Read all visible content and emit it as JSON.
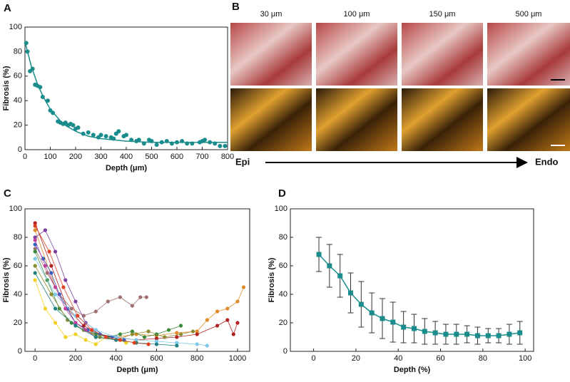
{
  "chart_data": [
    {
      "type": "scatter",
      "panel_label": "A",
      "xlabel": "Depth (μm)",
      "ylabel": "Fibrosis (%)",
      "xlim": [
        0,
        800
      ],
      "xticks": [
        0,
        100,
        200,
        300,
        400,
        500,
        600,
        700,
        800
      ],
      "ylim": [
        0,
        100
      ],
      "yticks": [
        0,
        20,
        40,
        60,
        80,
        100
      ],
      "series": [
        {
          "color": "#1a8c8c",
          "style": "markers",
          "x": [
            5,
            10,
            20,
            30,
            40,
            50,
            60,
            70,
            90,
            100,
            110,
            130,
            140,
            150,
            160,
            170,
            180,
            190,
            200,
            210,
            230,
            250,
            270,
            290,
            300,
            320,
            340,
            350,
            360,
            370,
            390,
            400,
            420,
            440,
            450,
            470,
            490,
            500,
            520,
            540,
            560,
            580,
            600,
            620,
            640,
            660,
            690,
            700,
            710,
            730,
            750,
            770,
            790
          ],
          "values": [
            87,
            80,
            64,
            66,
            53,
            52,
            51,
            43,
            40,
            32,
            30,
            23,
            22,
            21,
            22,
            20,
            21,
            20,
            17,
            18,
            13,
            14,
            12,
            10,
            12,
            11,
            10,
            9,
            13,
            15,
            11,
            12,
            8,
            7,
            8,
            5,
            8,
            7,
            4,
            6,
            7,
            5,
            6,
            7,
            5,
            5,
            6,
            7,
            8,
            6,
            5,
            3,
            3
          ]
        },
        {
          "color": "#1a8c8c",
          "style": "line",
          "x": [
            0,
            25,
            50,
            75,
            100,
            150,
            200,
            250,
            300,
            400,
            500,
            600,
            700,
            800
          ],
          "values": [
            88,
            68,
            53,
            42,
            33,
            21,
            15,
            11,
            9,
            7,
            6,
            6,
            6,
            6
          ]
        }
      ]
    },
    {
      "type": "line",
      "panel_label": "C",
      "xlabel": "Depth (μm)",
      "ylabel": "Fibrosis (%)",
      "xlim": [
        -50,
        1060
      ],
      "xticks": [
        0,
        200,
        400,
        600,
        800,
        1000
      ],
      "ylim": [
        0,
        100
      ],
      "yticks": [
        0,
        20,
        40,
        60,
        80,
        100
      ],
      "series": [
        {
          "color": "#a07070",
          "style": "markers+line",
          "x": [
            0,
            60,
            120,
            180,
            240,
            300,
            360,
            420,
            480,
            520,
            550
          ],
          "values": [
            72,
            55,
            40,
            30,
            25,
            28,
            35,
            38,
            32,
            38,
            38
          ]
        },
        {
          "color": "#e08a2a",
          "style": "markers+line",
          "x": [
            0,
            100,
            200,
            300,
            400,
            500,
            600,
            700,
            800,
            850,
            900,
            950,
            1000,
            1030
          ],
          "values": [
            85,
            45,
            20,
            12,
            10,
            12,
            11,
            13,
            14,
            22,
            28,
            30,
            35,
            45
          ]
        },
        {
          "color": "#b22222",
          "style": "markers+line",
          "x": [
            0,
            80,
            160,
            240,
            320,
            400,
            500,
            600,
            700,
            800,
            900,
            950,
            980,
            1000
          ],
          "values": [
            90,
            60,
            30,
            18,
            12,
            10,
            8,
            9,
            10,
            12,
            18,
            22,
            12,
            20
          ]
        },
        {
          "color": "#7b3fa0",
          "style": "markers+line",
          "x": [
            0,
            50,
            100,
            150,
            200,
            250,
            300,
            350
          ],
          "values": [
            80,
            85,
            70,
            50,
            35,
            20,
            15,
            10
          ]
        },
        {
          "color": "#f0d020",
          "style": "markers+line",
          "x": [
            0,
            50,
            100,
            150,
            200,
            250,
            300,
            350,
            400,
            450
          ],
          "values": [
            50,
            30,
            20,
            10,
            12,
            8,
            5,
            10,
            8,
            6
          ]
        },
        {
          "color": "#3a8a3a",
          "style": "markers+line",
          "x": [
            0,
            60,
            120,
            180,
            240,
            300,
            360,
            420,
            480,
            540,
            600,
            660,
            720
          ],
          "values": [
            70,
            50,
            30,
            20,
            15,
            12,
            10,
            12,
            14,
            10,
            12,
            15,
            18
          ]
        },
        {
          "color": "#3060c0",
          "style": "markers+line",
          "x": [
            0,
            40,
            80,
            120,
            160,
            200,
            260,
            320,
            380,
            440
          ],
          "values": [
            75,
            65,
            55,
            40,
            30,
            20,
            15,
            12,
            10,
            8
          ]
        },
        {
          "color": "#7ec8e8",
          "style": "markers+line",
          "x": [
            0,
            100,
            200,
            300,
            400,
            500,
            600,
            700,
            800,
            850
          ],
          "values": [
            65,
            40,
            25,
            15,
            10,
            8,
            7,
            6,
            5,
            4
          ]
        },
        {
          "color": "#8a8a30",
          "style": "markers+line",
          "x": [
            0,
            80,
            160,
            240,
            320,
            400,
            480,
            560,
            640,
            720,
            780
          ],
          "values": [
            60,
            40,
            22,
            15,
            10,
            8,
            12,
            14,
            10,
            12,
            14
          ]
        },
        {
          "color": "#c040a0",
          "style": "markers+line",
          "x": [
            0,
            50,
            100,
            150,
            200,
            250,
            300
          ],
          "values": [
            78,
            60,
            45,
            30,
            20,
            15,
            10
          ]
        },
        {
          "color": "#208080",
          "style": "markers+line",
          "x": [
            0,
            100,
            200,
            300,
            400,
            500,
            600,
            700
          ],
          "values": [
            55,
            30,
            18,
            10,
            8,
            6,
            5,
            4
          ]
        },
        {
          "color": "#e04020",
          "style": "markers+line",
          "x": [
            0,
            70,
            140,
            210,
            280,
            350,
            420,
            490,
            560
          ],
          "values": [
            88,
            70,
            45,
            25,
            15,
            10,
            8,
            6,
            5
          ]
        }
      ]
    },
    {
      "type": "line",
      "panel_label": "D",
      "xlabel": "Depth (%)",
      "ylabel": "Fibrosis (%)",
      "xlim": [
        -11,
        104
      ],
      "xticks": [
        0,
        20,
        40,
        60,
        80,
        100
      ],
      "ylim": [
        0,
        100
      ],
      "yticks": [
        0,
        20,
        40,
        60,
        80,
        100
      ],
      "series": [
        {
          "color": "#1a8c8c",
          "style": "markers+line",
          "marker": "square",
          "x": [
            2.5,
            7.5,
            12.5,
            17.5,
            22.5,
            27.5,
            32.5,
            37.5,
            42.5,
            47.5,
            52.5,
            57.5,
            62.5,
            67.5,
            72.5,
            77.5,
            82.5,
            87.5,
            92.5,
            97.5
          ],
          "values": [
            68,
            60,
            53,
            41,
            33,
            27,
            23,
            20.5,
            17,
            16,
            14,
            13,
            12,
            12,
            12,
            11,
            11,
            11,
            12,
            13
          ],
          "errors": [
            12,
            15,
            15,
            14,
            16,
            14,
            14,
            14,
            11,
            10,
            9,
            8,
            7,
            7,
            6,
            6,
            5,
            5,
            7,
            8
          ]
        }
      ]
    }
  ],
  "figure_b": {
    "panel_label": "B",
    "columns": [
      "30 μm",
      "100 μm",
      "150 μm",
      "500 μm"
    ],
    "axis_start": "Epi",
    "axis_end": "Endo"
  }
}
